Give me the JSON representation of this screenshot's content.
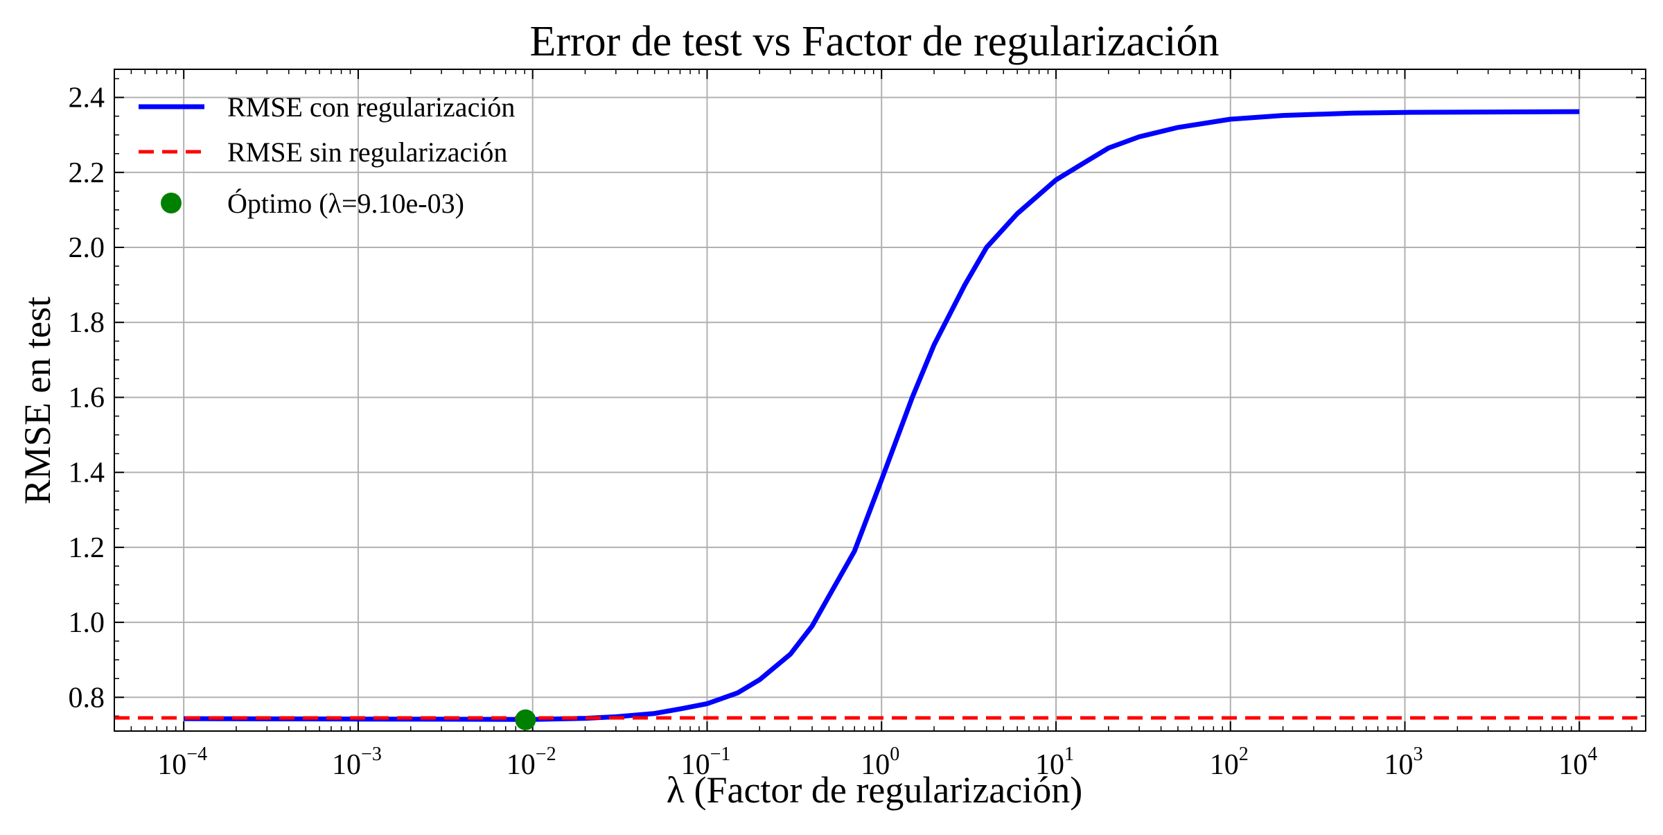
{
  "chart_data": {
    "type": "line",
    "title": "Error de test vs Factor de regularización",
    "xlabel": "λ (Factor de regularización)",
    "ylabel": "RMSE en test",
    "x_scale": "log",
    "xlim": [
      4e-05,
      24000
    ],
    "ylim": [
      0.71,
      2.475
    ],
    "x_ticks": [
      {
        "value": 0.0001,
        "base": "10",
        "exp": "−4"
      },
      {
        "value": 0.001,
        "base": "10",
        "exp": "−3"
      },
      {
        "value": 0.01,
        "base": "10",
        "exp": "−2"
      },
      {
        "value": 0.1,
        "base": "10",
        "exp": "−1"
      },
      {
        "value": 1,
        "base": "10",
        "exp": "0"
      },
      {
        "value": 10,
        "base": "10",
        "exp": "1"
      },
      {
        "value": 100,
        "base": "10",
        "exp": "2"
      },
      {
        "value": 1000,
        "base": "10",
        "exp": "3"
      },
      {
        "value": 10000,
        "base": "10",
        "exp": "4"
      }
    ],
    "y_ticks": [
      {
        "value": 0.8,
        "label": "0.8"
      },
      {
        "value": 1.0,
        "label": "1.0"
      },
      {
        "value": 1.2,
        "label": "1.2"
      },
      {
        "value": 1.4,
        "label": "1.4"
      },
      {
        "value": 1.6,
        "label": "1.6"
      },
      {
        "value": 1.8,
        "label": "1.8"
      },
      {
        "value": 2.0,
        "label": "2.0"
      },
      {
        "value": 2.2,
        "label": "2.2"
      },
      {
        "value": 2.4,
        "label": "2.4"
      }
    ],
    "grid": true,
    "legend_position": "top-left",
    "series": [
      {
        "name": "RMSE con regularización",
        "kind": "line",
        "color": "#0000ff",
        "points": [
          [
            0.0001,
            0.743
          ],
          [
            0.001,
            0.742
          ],
          [
            0.01,
            0.741
          ],
          [
            0.02,
            0.744
          ],
          [
            0.03,
            0.748
          ],
          [
            0.05,
            0.757
          ],
          [
            0.07,
            0.769
          ],
          [
            0.1,
            0.783
          ],
          [
            0.15,
            0.812
          ],
          [
            0.2,
            0.847
          ],
          [
            0.3,
            0.915
          ],
          [
            0.4,
            0.99
          ],
          [
            0.5,
            1.07
          ],
          [
            0.7,
            1.19
          ],
          [
            1.0,
            1.38
          ],
          [
            1.5,
            1.6
          ],
          [
            2.0,
            1.74
          ],
          [
            3.0,
            1.9
          ],
          [
            4.0,
            2.0
          ],
          [
            6.0,
            2.09
          ],
          [
            10.0,
            2.18
          ],
          [
            15.0,
            2.23
          ],
          [
            20.0,
            2.265
          ],
          [
            30.0,
            2.295
          ],
          [
            50.0,
            2.32
          ],
          [
            100.0,
            2.342
          ],
          [
            200.0,
            2.352
          ],
          [
            500.0,
            2.358
          ],
          [
            1000.0,
            2.36
          ],
          [
            10000.0,
            2.362
          ]
        ]
      },
      {
        "name": "RMSE sin regularización",
        "kind": "hline",
        "color": "#ff0000",
        "linestyle": "dashed",
        "y": 0.745
      },
      {
        "name": "Óptimo (λ=9.10e-03)",
        "kind": "point",
        "color": "#008000",
        "x": 0.0091,
        "y": 0.74
      }
    ]
  }
}
